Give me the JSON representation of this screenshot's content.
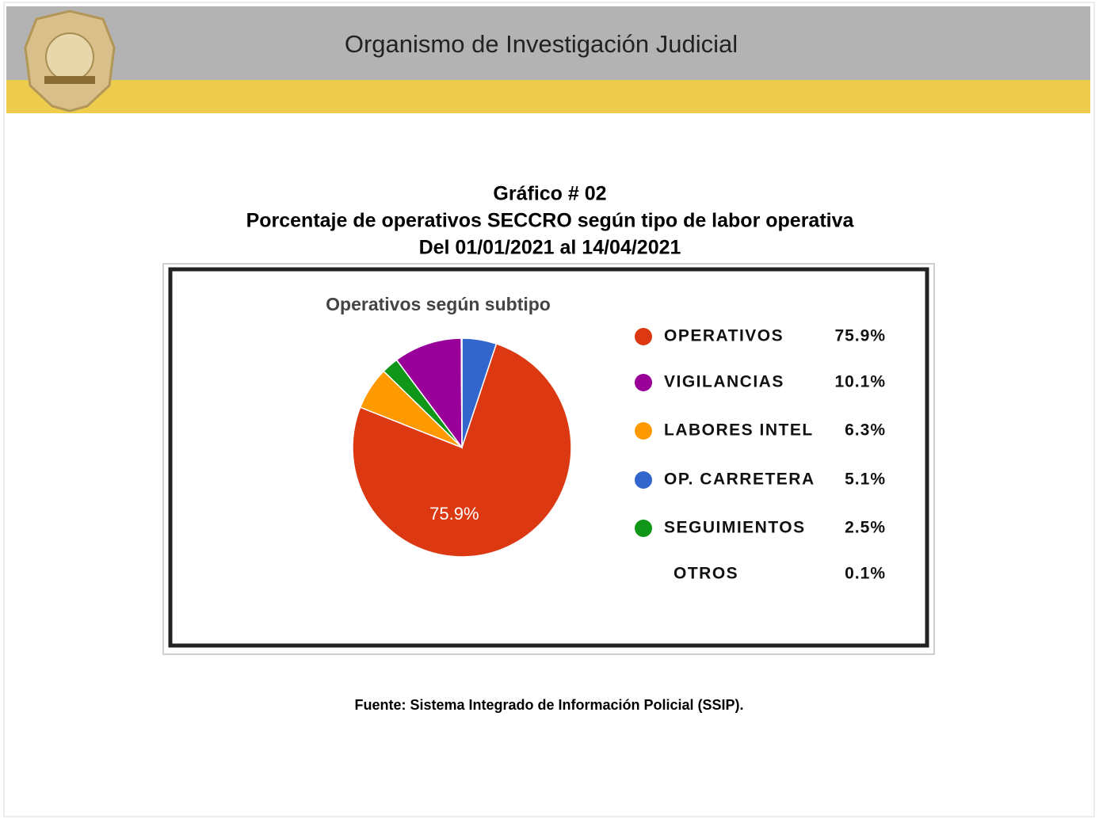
{
  "header": {
    "title": "Organismo de Investigación Judicial"
  },
  "heading": {
    "number": "Gráfico # 02",
    "title": "Porcentaje de operativos SECCRO según tipo de labor operativa",
    "period": "Del 01/01/2021 al 14/04/2021"
  },
  "chart_data": {
    "type": "pie",
    "title": "Operativos según subtipo",
    "categories": [
      "OPERATIVOS",
      "VIGILANCIAS",
      "LABORES INTEL",
      "OP. CARRETERA",
      "SEGUIMIENTOS",
      "OTROS"
    ],
    "values": [
      75.9,
      10.1,
      6.3,
      5.1,
      2.5,
      0.1
    ],
    "value_labels": [
      "75.9%",
      "10.1%",
      "6.3%",
      "5.1%",
      "2.5%",
      "0.1%"
    ],
    "colors": [
      "#dc3912",
      "#990099",
      "#ff9900",
      "#3366cc",
      "#109618",
      "#ffffff"
    ]
  },
  "source": "Fuente: Sistema Integrado de Información Policial (SSIP)."
}
